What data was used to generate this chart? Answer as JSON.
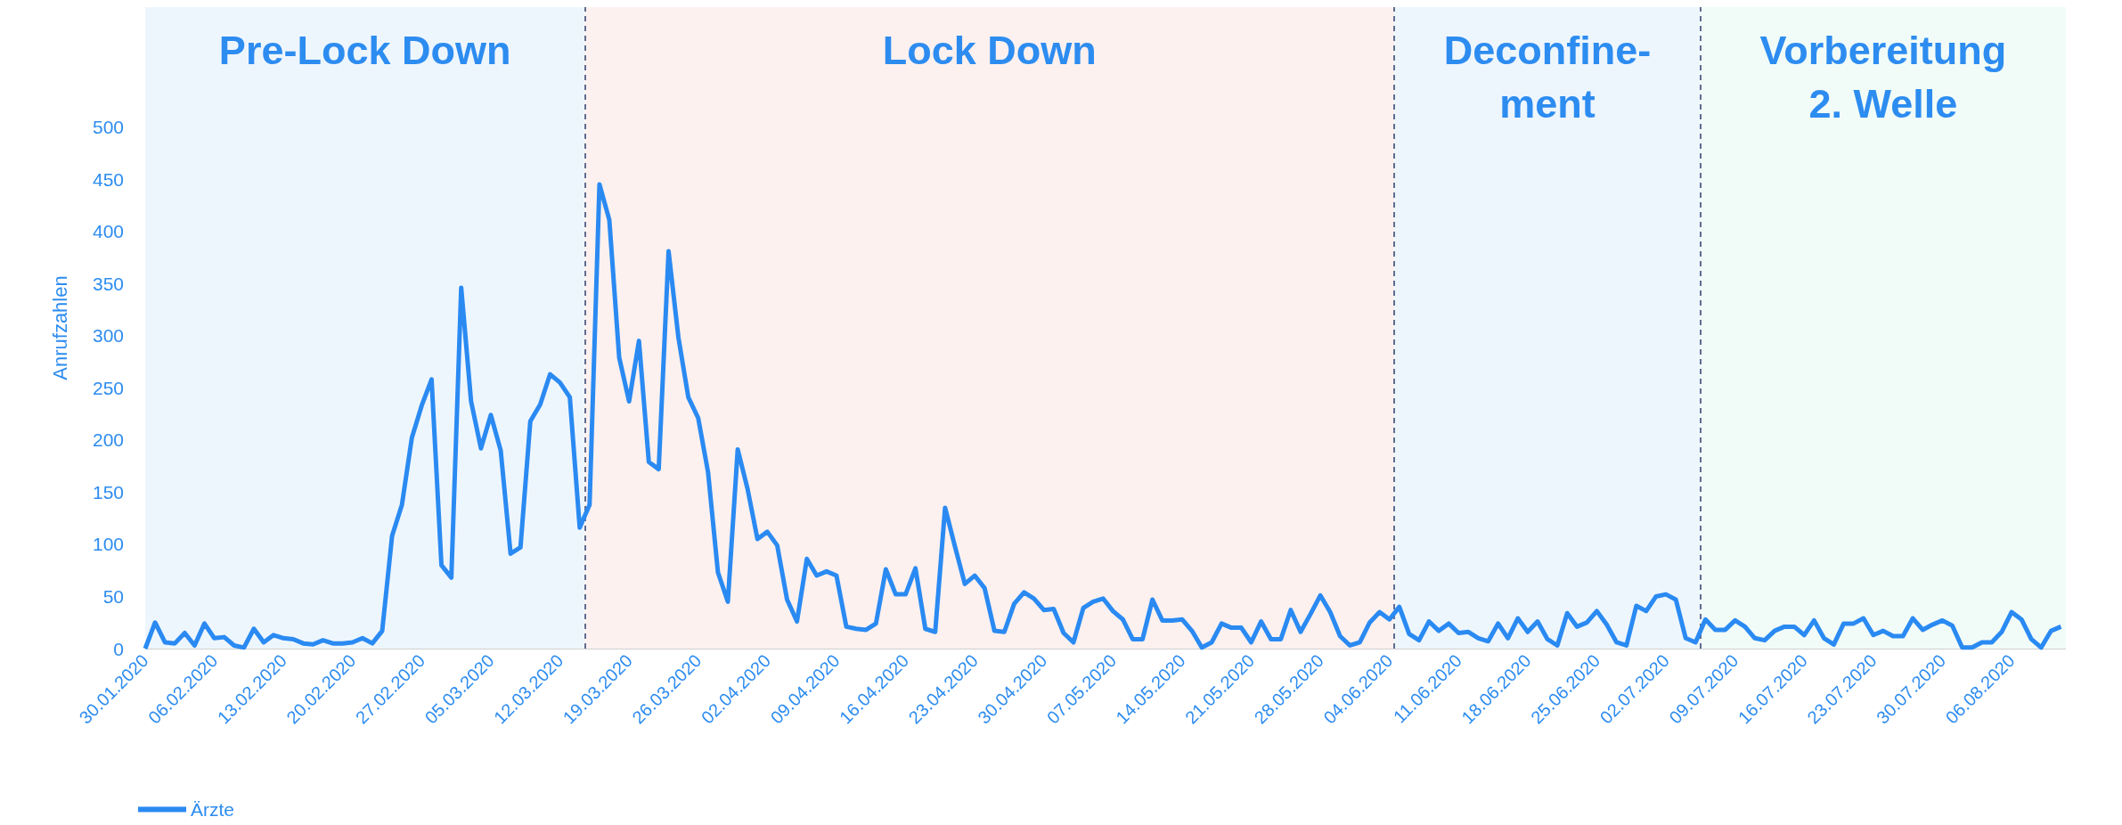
{
  "chart_data": {
    "type": "line",
    "ylabel": "Anrufzahlen",
    "ylim": [
      0,
      615
    ],
    "yticks": [
      0,
      50,
      100,
      150,
      200,
      250,
      300,
      350,
      400,
      450,
      500
    ],
    "grid": "y",
    "legend": "bottom left",
    "marker": "none",
    "xlim": [
      "2020-01-30",
      "2020-08-11T12:00"
    ],
    "xticks": [
      {
        "value": "2020-01-30",
        "label": "30.01.2020"
      },
      {
        "value": "2020-02-06",
        "label": "06.02.2020"
      },
      {
        "value": "2020-02-13",
        "label": "13.02.2020"
      },
      {
        "value": "2020-02-20",
        "label": "20.02.2020"
      },
      {
        "value": "2020-02-27",
        "label": "27.02.2020"
      },
      {
        "value": "2020-03-05",
        "label": "05.03.2020"
      },
      {
        "value": "2020-03-12",
        "label": "12.03.2020"
      },
      {
        "value": "2020-03-19",
        "label": "19.03.2020"
      },
      {
        "value": "2020-03-26",
        "label": "26.03.2020"
      },
      {
        "value": "2020-04-02",
        "label": "02.04.2020"
      },
      {
        "value": "2020-04-09",
        "label": "09.04.2020"
      },
      {
        "value": "2020-04-16",
        "label": "16.04.2020"
      },
      {
        "value": "2020-04-23",
        "label": "23.04.2020"
      },
      {
        "value": "2020-04-30",
        "label": "30.04.2020"
      },
      {
        "value": "2020-05-07",
        "label": "07.05.2020"
      },
      {
        "value": "2020-05-14",
        "label": "14.05.2020"
      },
      {
        "value": "2020-05-21",
        "label": "21.05.2020"
      },
      {
        "value": "2020-05-28",
        "label": "28.05.2020"
      },
      {
        "value": "2020-06-04",
        "label": "04.06.2020"
      },
      {
        "value": "2020-06-11",
        "label": "11.06.2020"
      },
      {
        "value": "2020-06-18",
        "label": "18.06.2020"
      },
      {
        "value": "2020-06-25",
        "label": "25.06.2020"
      },
      {
        "value": "2020-07-02",
        "label": "02.07.2020"
      },
      {
        "value": "2020-07-09",
        "label": "09.07.2020"
      },
      {
        "value": "2020-07-16",
        "label": "16.07.2020"
      },
      {
        "value": "2020-07-23",
        "label": "23.07.2020"
      },
      {
        "value": "2020-07-30",
        "label": "30.07.2020"
      },
      {
        "value": "2020-08-06",
        "label": "06.08.2020"
      }
    ],
    "x": [
      "2020-01-30",
      "2020-01-31",
      "2020-02-01",
      "2020-02-02",
      "2020-02-03",
      "2020-02-04",
      "2020-02-05",
      "2020-02-06",
      "2020-02-07",
      "2020-02-08",
      "2020-02-09",
      "2020-02-10",
      "2020-02-11",
      "2020-02-12",
      "2020-02-13",
      "2020-02-14",
      "2020-02-15",
      "2020-02-16",
      "2020-02-17",
      "2020-02-18",
      "2020-02-19",
      "2020-02-20",
      "2020-02-21",
      "2020-02-22",
      "2020-02-23",
      "2020-02-24",
      "2020-02-25",
      "2020-02-26",
      "2020-02-27",
      "2020-02-28",
      "2020-02-29",
      "2020-03-01",
      "2020-03-02",
      "2020-03-03",
      "2020-03-04",
      "2020-03-05",
      "2020-03-06",
      "2020-03-07",
      "2020-03-08",
      "2020-03-09",
      "2020-03-10",
      "2020-03-11",
      "2020-03-12",
      "2020-03-13",
      "2020-03-14",
      "2020-03-15",
      "2020-03-16",
      "2020-03-17",
      "2020-03-18",
      "2020-03-19",
      "2020-03-20",
      "2020-03-21",
      "2020-03-22",
      "2020-03-23",
      "2020-03-24",
      "2020-03-25",
      "2020-03-26",
      "2020-03-27",
      "2020-03-28",
      "2020-03-29",
      "2020-03-30",
      "2020-03-31",
      "2020-04-01",
      "2020-04-02",
      "2020-04-03",
      "2020-04-04",
      "2020-04-05",
      "2020-04-06",
      "2020-04-07",
      "2020-04-08",
      "2020-04-09",
      "2020-04-10",
      "2020-04-11",
      "2020-04-12",
      "2020-04-13",
      "2020-04-14",
      "2020-04-15",
      "2020-04-16",
      "2020-04-17",
      "2020-04-18",
      "2020-04-19",
      "2020-04-20",
      "2020-04-21",
      "2020-04-22",
      "2020-04-23",
      "2020-04-24",
      "2020-04-25",
      "2020-04-26",
      "2020-04-27",
      "2020-04-28",
      "2020-04-29",
      "2020-04-30",
      "2020-05-01",
      "2020-05-02",
      "2020-05-03",
      "2020-05-04",
      "2020-05-05",
      "2020-05-06",
      "2020-05-07",
      "2020-05-08",
      "2020-05-09",
      "2020-05-10",
      "2020-05-11",
      "2020-05-12",
      "2020-05-13",
      "2020-05-14",
      "2020-05-15",
      "2020-05-16",
      "2020-05-17",
      "2020-05-18",
      "2020-05-19",
      "2020-05-20",
      "2020-05-21",
      "2020-05-22",
      "2020-05-23",
      "2020-05-24",
      "2020-05-25",
      "2020-05-26",
      "2020-05-27",
      "2020-05-28",
      "2020-05-29",
      "2020-05-30",
      "2020-05-31",
      "2020-06-01",
      "2020-06-02",
      "2020-06-03",
      "2020-06-04",
      "2020-06-05",
      "2020-06-06",
      "2020-06-07",
      "2020-06-08",
      "2020-06-09",
      "2020-06-10",
      "2020-06-11",
      "2020-06-12",
      "2020-06-13",
      "2020-06-14",
      "2020-06-15",
      "2020-06-16",
      "2020-06-17",
      "2020-06-18",
      "2020-06-19",
      "2020-06-20",
      "2020-06-21",
      "2020-06-22",
      "2020-06-23",
      "2020-06-24",
      "2020-06-25",
      "2020-06-26",
      "2020-06-27",
      "2020-06-28",
      "2020-06-29",
      "2020-06-30",
      "2020-07-01",
      "2020-07-02",
      "2020-07-03",
      "2020-07-04",
      "2020-07-05",
      "2020-07-06",
      "2020-07-07",
      "2020-07-08",
      "2020-07-09",
      "2020-07-10",
      "2020-07-11",
      "2020-07-12",
      "2020-07-13",
      "2020-07-14",
      "2020-07-15",
      "2020-07-16",
      "2020-07-17",
      "2020-07-18",
      "2020-07-19",
      "2020-07-20",
      "2020-07-21",
      "2020-07-22",
      "2020-07-23",
      "2020-07-24",
      "2020-07-25",
      "2020-07-26",
      "2020-07-27",
      "2020-07-28",
      "2020-07-29",
      "2020-07-30",
      "2020-07-31",
      "2020-08-01",
      "2020-08-02",
      "2020-08-03",
      "2020-08-04",
      "2020-08-05",
      "2020-08-06",
      "2020-08-07",
      "2020-08-08",
      "2020-08-09",
      "2020-08-10",
      "2020-08-11"
    ],
    "series": [
      {
        "name": "Ärzte",
        "color": "#2a8af2",
        "values": [
          0,
          25,
          6,
          5,
          15,
          3,
          24,
          10,
          11,
          3,
          1,
          19,
          6,
          13,
          10,
          9,
          5,
          4,
          8,
          5,
          5,
          6,
          10,
          5,
          17,
          108,
          138,
          202,
          233,
          258,
          80,
          68,
          346,
          237,
          192,
          224,
          190,
          91,
          97,
          218,
          234,
          263,
          255,
          241,
          116,
          138,
          445,
          411,
          279,
          237,
          295,
          179,
          172,
          381,
          298,
          241,
          221,
          169,
          73,
          45,
          191,
          153,
          105,
          112,
          99,
          47,
          26,
          86,
          70,
          74,
          70,
          21,
          19,
          18,
          24,
          76,
          52,
          52,
          77,
          19,
          16,
          135,
          98,
          62,
          70,
          58,
          17,
          16,
          43,
          54,
          48,
          37,
          38,
          15,
          6,
          39,
          45,
          48,
          36,
          28,
          9,
          9,
          47,
          27,
          27,
          28,
          17,
          1,
          6,
          24,
          20,
          20,
          6,
          26,
          9,
          9,
          37,
          16,
          33,
          51,
          35,
          12,
          3,
          6,
          25,
          35,
          28,
          40,
          14,
          8,
          26,
          17,
          24,
          15,
          16,
          10,
          7,
          24,
          10,
          29,
          16,
          26,
          9,
          3,
          34,
          21,
          25,
          36,
          23,
          6,
          3,
          41,
          36,
          50,
          52,
          47,
          10,
          6,
          28,
          18,
          18,
          27,
          21,
          10,
          8,
          17,
          21,
          21,
          13,
          27,
          10,
          4,
          24,
          24,
          29,
          13,
          17,
          12,
          12,
          29,
          18,
          23,
          27,
          22,
          1,
          1,
          6,
          6,
          16,
          35,
          28,
          9,
          1,
          17,
          21
        ]
      }
    ],
    "bands": [
      {
        "axis": "x",
        "from": "2020-01-30",
        "to": "2020-03-14T12:00",
        "label": "Pre-Lock Down",
        "color": "#eef6fd"
      },
      {
        "axis": "x",
        "from": "2020-03-14T12:00",
        "to": "2020-06-04T12:00",
        "label": "Lock Down",
        "color": "#fcf1ef"
      },
      {
        "axis": "x",
        "from": "2020-06-04T12:00",
        "to": "2020-07-05T12:00",
        "label": "Deconfine-\nment",
        "color": "#eef6fd"
      },
      {
        "axis": "x",
        "from": "2020-07-05T12:00",
        "to": "2020-08-11T12:00",
        "label": "Vorbereitung\n2. Welle",
        "color": "#f1fcf8"
      }
    ],
    "ref_lines": [
      {
        "axis": "x",
        "value": "2020-03-14T12:00",
        "color": "#2f3f6f",
        "line_style": "dashed"
      },
      {
        "axis": "x",
        "value": "2020-06-04T12:00",
        "color": "#2f3f6f",
        "line_style": "dashed"
      },
      {
        "axis": "x",
        "value": "2020-07-05T12:00",
        "color": "#2f3f6f",
        "line_style": "dashed"
      }
    ]
  }
}
